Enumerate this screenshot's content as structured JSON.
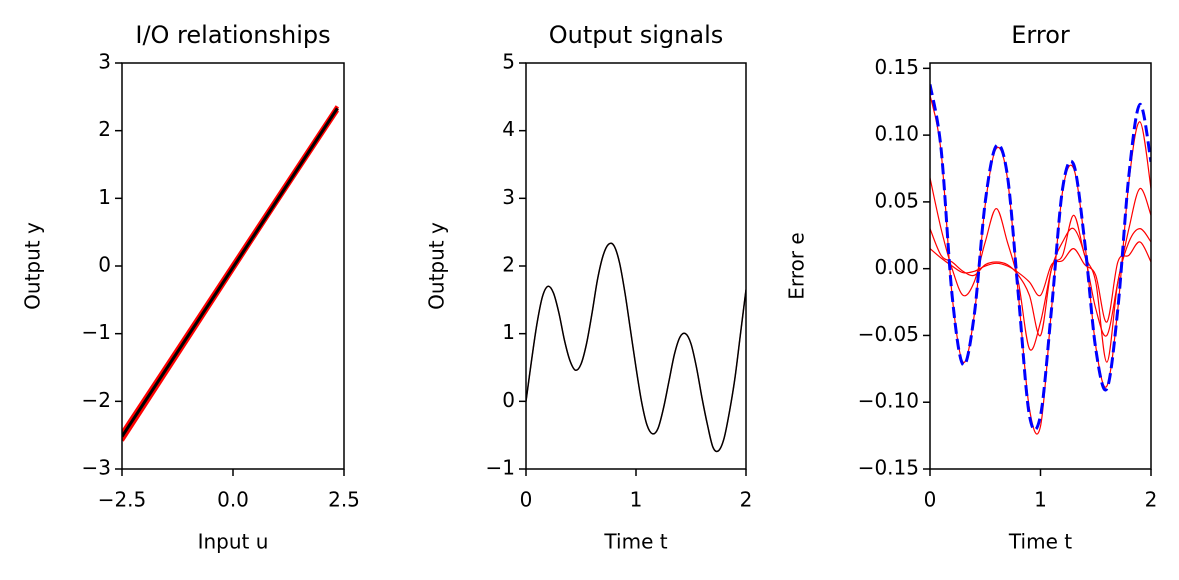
{
  "chart_data": [
    {
      "type": "line",
      "title": "I/O relationships",
      "xlabel": "Input u",
      "ylabel": "Output y",
      "xlim": [
        -2.5,
        2.5
      ],
      "ylim": [
        -3,
        3
      ],
      "xticks": [
        {
          "value": -2.5,
          "label": "−2.5"
        },
        {
          "value": 0,
          "label": "0.0"
        },
        2.5
      ],
      "yticks": [
        {
          "value": -3,
          "label": "−3"
        },
        {
          "value": -2,
          "label": "−2"
        },
        {
          "value": -1,
          "label": "−1"
        },
        0,
        1,
        2,
        3
      ],
      "series": [
        {
          "color": "#ff0000",
          "x": [
            -2.5,
            2.35
          ],
          "values": [
            -2.58,
            2.33
          ]
        },
        {
          "color": "#ff0000",
          "x": [
            -2.5,
            2.35
          ],
          "values": [
            -2.47,
            2.36
          ]
        },
        {
          "color": "#ff0000",
          "x": [
            -2.5,
            2.35
          ],
          "values": [
            -2.52,
            2.3
          ]
        },
        {
          "color": "#000000",
          "x": [
            -2.5,
            2.35
          ],
          "values": [
            -2.52,
            2.33
          ]
        }
      ]
    },
    {
      "type": "line",
      "title": "Output signals",
      "xlabel": "Time t",
      "ylabel": "Output y",
      "xlim": [
        0,
        2
      ],
      "ylim": [
        -1,
        5
      ],
      "xticks": [
        0,
        1,
        2
      ],
      "yticks": [
        {
          "value": -1,
          "label": "−1"
        },
        0,
        1,
        2,
        3,
        4,
        5
      ],
      "x": [
        0,
        0.05,
        0.1,
        0.15,
        0.2,
        0.25,
        0.3,
        0.35,
        0.4,
        0.45,
        0.5,
        0.55,
        0.6,
        0.65,
        0.7,
        0.75,
        0.8,
        0.85,
        0.9,
        0.95,
        1.0,
        1.05,
        1.1,
        1.15,
        1.2,
        1.25,
        1.3,
        1.35,
        1.4,
        1.45,
        1.5,
        1.55,
        1.6,
        1.65,
        1.7,
        1.75,
        1.8,
        1.85,
        1.9,
        1.95,
        2.0
      ],
      "series": [
        {
          "color": "#ff0000",
          "values": [
            0,
            0.6,
            1.15,
            1.55,
            1.7,
            1.6,
            1.3,
            0.9,
            0.6,
            0.46,
            0.55,
            0.85,
            1.3,
            1.8,
            2.15,
            2.32,
            2.3,
            2.05,
            1.6,
            1.05,
            0.5,
            0.0,
            -0.35,
            -0.48,
            -0.4,
            -0.1,
            0.3,
            0.7,
            0.95,
            1.0,
            0.85,
            0.5,
            0.05,
            -0.35,
            -0.68,
            -0.73,
            -0.55,
            -0.15,
            0.35,
            1.0,
            1.65
          ]
        },
        {
          "color": "#000000",
          "values": [
            0,
            0.6,
            1.15,
            1.55,
            1.7,
            1.6,
            1.3,
            0.9,
            0.6,
            0.46,
            0.55,
            0.85,
            1.3,
            1.8,
            2.15,
            2.32,
            2.3,
            2.05,
            1.6,
            1.05,
            0.5,
            0.0,
            -0.35,
            -0.48,
            -0.4,
            -0.1,
            0.3,
            0.7,
            0.95,
            1.0,
            0.85,
            0.5,
            0.05,
            -0.35,
            -0.68,
            -0.73,
            -0.55,
            -0.15,
            0.35,
            1.0,
            1.65
          ]
        }
      ]
    },
    {
      "type": "line",
      "title": "Error",
      "xlabel": "Time t",
      "ylabel": "Error e",
      "xlim": [
        0,
        2
      ],
      "ylim": [
        -0.15,
        0.154
      ],
      "xticks": [
        0,
        1,
        2
      ],
      "yticks": [
        {
          "value": -0.15,
          "label": "−0.15"
        },
        {
          "value": -0.1,
          "label": "−0.10"
        },
        {
          "value": -0.05,
          "label": "−0.05"
        },
        {
          "value": 0,
          "label": "0.00"
        },
        0.05,
        {
          "value": 0.1,
          "label": "0.10"
        },
        0.15
      ],
      "x": [
        0,
        0.1,
        0.2,
        0.3,
        0.4,
        0.5,
        0.6,
        0.7,
        0.8,
        0.9,
        1.0,
        1.1,
        1.2,
        1.3,
        1.4,
        1.5,
        1.6,
        1.7,
        1.8,
        1.9,
        2.0
      ],
      "series": [
        {
          "color": "#ff0000",
          "values": [
            0.13,
            0.088,
            -0.02,
            -0.07,
            -0.035,
            0.048,
            0.09,
            0.068,
            -0.02,
            -0.105,
            -0.118,
            -0.03,
            0.058,
            0.075,
            0.02,
            -0.058,
            -0.088,
            -0.03,
            0.065,
            0.11,
            0.06
          ]
        },
        {
          "color": "#ff0000",
          "values": [
            0.068,
            0.03,
            0.0,
            -0.02,
            -0.01,
            0.02,
            0.045,
            0.02,
            -0.01,
            -0.06,
            -0.04,
            0.0,
            0.02,
            0.03,
            0.01,
            -0.03,
            -0.05,
            -0.01,
            0.03,
            0.06,
            0.04
          ]
        },
        {
          "color": "#ff0000",
          "values": [
            0.03,
            0.01,
            0.005,
            -0.002,
            -0.005,
            0.003,
            0.005,
            0.003,
            -0.005,
            -0.02,
            -0.05,
            0.0,
            0.01,
            0.04,
            0.01,
            -0.01,
            -0.07,
            -0.01,
            0.02,
            0.03,
            0.02
          ]
        },
        {
          "color": "#ff0000",
          "values": [
            0.015,
            0.008,
            0.002,
            -0.003,
            -0.002,
            0.002,
            0.004,
            0.002,
            -0.003,
            -0.01,
            -0.02,
            0.003,
            0.006,
            0.015,
            0.003,
            -0.005,
            -0.04,
            0.005,
            0.01,
            0.02,
            0.005
          ]
        },
        {
          "color": "#0000ff",
          "dashed": true,
          "values": [
            0.138,
            0.09,
            -0.02,
            -0.072,
            -0.035,
            0.05,
            0.092,
            0.07,
            -0.02,
            -0.11,
            -0.11,
            -0.03,
            0.06,
            0.078,
            0.02,
            -0.06,
            -0.09,
            -0.03,
            0.07,
            0.123,
            0.08
          ]
        }
      ]
    }
  ]
}
